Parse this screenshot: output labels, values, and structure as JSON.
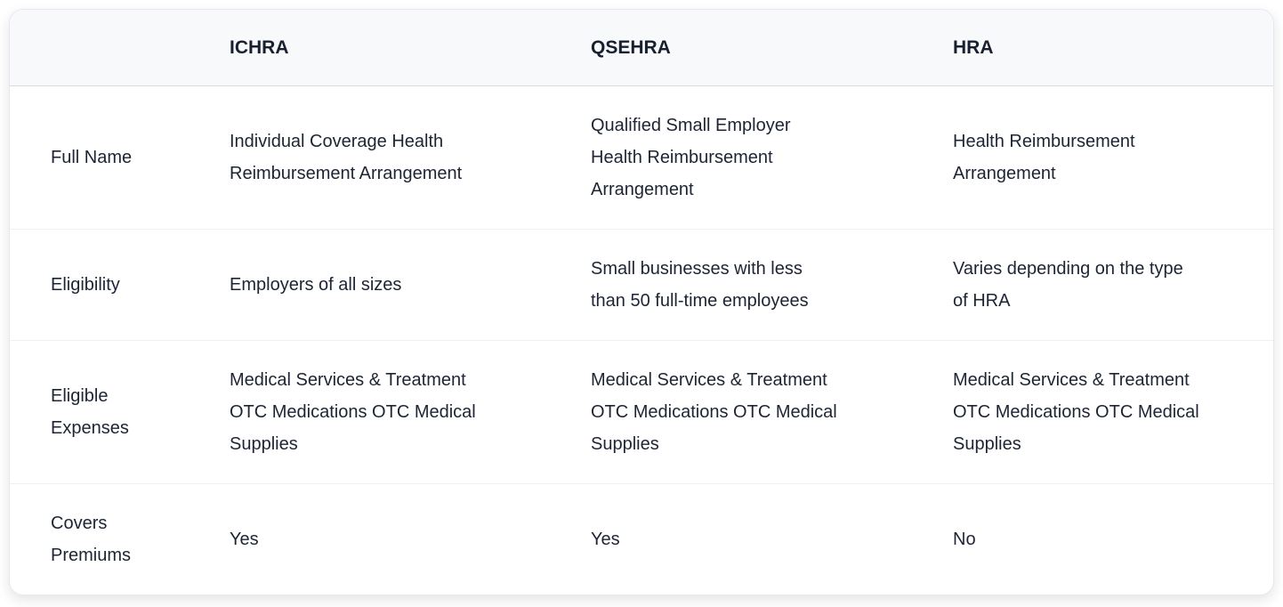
{
  "card": {
    "background": "#ffffff",
    "border_color": "#e7e9ee",
    "header_background": "#f8f9fb",
    "header_border_color": "#d8dade",
    "row_divider_color": "#eef0f1",
    "text_color": "#1d2433"
  },
  "header": {
    "columns": [
      "",
      "ICHRA",
      "QSEHRA",
      "HRA"
    ]
  },
  "rows": [
    {
      "label": [
        "Full Name"
      ],
      "cells": [
        [
          "Individual Coverage Health",
          "Reimbursement Arrangement"
        ],
        [
          "Qualified Small Employer",
          "Health Reimbursement",
          "Arrangement"
        ],
        [
          "Health Reimbursement",
          "Arrangement"
        ]
      ]
    },
    {
      "label": [
        "Eligibility"
      ],
      "cells": [
        [
          "Employers of all sizes"
        ],
        [
          "Small businesses with less",
          "than 50 full-time employees"
        ],
        [
          "Varies depending on the type",
          "of HRA"
        ]
      ]
    },
    {
      "label": [
        "Eligible",
        "Expenses"
      ],
      "cells": [
        [
          "Medical Services & Treatment",
          "OTC Medications OTC Medical",
          "Supplies"
        ],
        [
          "Medical Services & Treatment",
          "OTC Medications OTC Medical",
          "Supplies"
        ],
        [
          "Medical Services & Treatment",
          "OTC Medications OTC Medical",
          "Supplies"
        ]
      ]
    },
    {
      "label": [
        "Covers",
        "Premiums"
      ],
      "cells": [
        [
          "Yes"
        ],
        [
          "Yes"
        ],
        [
          "No"
        ]
      ]
    }
  ],
  "chart_data": {
    "type": "table",
    "title": "",
    "columns": [
      "",
      "ICHRA",
      "QSEHRA",
      "HRA"
    ],
    "rows": [
      [
        "Full Name",
        "Individual Coverage Health Reimbursement Arrangement",
        "Qualified Small Employer Health Reimbursement Arrangement",
        "Health Reimbursement Arrangement"
      ],
      [
        "Eligibility",
        "Employers of all sizes",
        "Small businesses with less than 50 full-time employees",
        "Varies depending on the type of HRA"
      ],
      [
        "Eligible Expenses",
        "Medical Services & Treatment OTC Medications OTC Medical Supplies",
        "Medical Services & Treatment OTC Medications OTC Medical Supplies",
        "Medical Services & Treatment OTC Medications OTC Medical Supplies"
      ],
      [
        "Covers Premiums",
        "Yes",
        "Yes",
        "No"
      ]
    ]
  }
}
